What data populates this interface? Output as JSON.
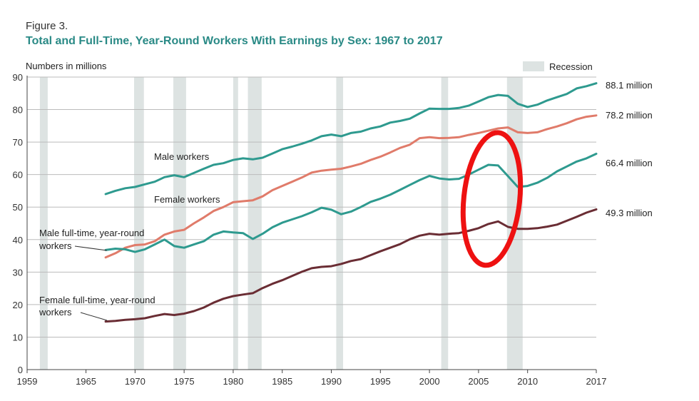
{
  "figure_label": "Figure 3.",
  "chart_data": {
    "type": "line",
    "title": "Total and Full-Time, Year-Round Workers With Earnings by Sex: 1967 to 2017",
    "ylabel": "Numbers in millions",
    "xlim": [
      1959,
      2017
    ],
    "ylim": [
      0,
      90
    ],
    "x_ticks": [
      "1959",
      "1965",
      "1970",
      "1975",
      "1980",
      "1985",
      "1990",
      "1995",
      "2000",
      "2005",
      "2010",
      "2017"
    ],
    "y_ticks": [
      "0",
      "10",
      "20",
      "30",
      "40",
      "50",
      "60",
      "70",
      "80",
      "90"
    ],
    "grid": "horizontal",
    "legend": {
      "label": "Recession",
      "position": "top-right",
      "color": "#dde3e2"
    },
    "recessions": [
      [
        1960.3,
        1961.1
      ],
      [
        1969.9,
        1970.9
      ],
      [
        1973.9,
        1975.2
      ],
      [
        1980.0,
        1980.5
      ],
      [
        1981.5,
        1982.9
      ],
      [
        1990.5,
        1991.2
      ],
      [
        2001.2,
        2001.9
      ],
      [
        2007.9,
        2009.5
      ]
    ],
    "series": [
      {
        "name": "Male workers",
        "color": "#2e9a8f",
        "label_value": "88.1 million",
        "x": [
          1967,
          1968,
          1969,
          1970,
          1971,
          1972,
          1973,
          1974,
          1975,
          1976,
          1977,
          1978,
          1979,
          1980,
          1981,
          1982,
          1983,
          1984,
          1985,
          1986,
          1987,
          1988,
          1989,
          1990,
          1991,
          1992,
          1993,
          1994,
          1995,
          1996,
          1997,
          1998,
          1999,
          2000,
          2001,
          2002,
          2003,
          2004,
          2005,
          2006,
          2007,
          2008,
          2009,
          2010,
          2011,
          2012,
          2013,
          2014,
          2015,
          2016,
          2017
        ],
        "y": [
          54,
          55,
          55.8,
          56.2,
          57,
          57.8,
          59.2,
          59.8,
          59.2,
          60.5,
          61.8,
          63,
          63.5,
          64.5,
          65,
          64.7,
          65.2,
          66.5,
          67.8,
          68.6,
          69.5,
          70.5,
          71.8,
          72.3,
          71.8,
          72.8,
          73.2,
          74.2,
          74.8,
          76,
          76.5,
          77.2,
          78.8,
          80.3,
          80.2,
          80.2,
          80.5,
          81.2,
          82.5,
          83.8,
          84.5,
          84.2,
          81.8,
          80.8,
          81.5,
          82.8,
          83.8,
          84.8,
          86.5,
          87.2,
          88.1
        ]
      },
      {
        "name": "Female workers",
        "color": "#e07b6a",
        "label_value": "78.2 million",
        "x": [
          1967,
          1968,
          1969,
          1970,
          1971,
          1972,
          1973,
          1974,
          1975,
          1976,
          1977,
          1978,
          1979,
          1980,
          1981,
          1982,
          1983,
          1984,
          1985,
          1986,
          1987,
          1988,
          1989,
          1990,
          1991,
          1992,
          1993,
          1994,
          1995,
          1996,
          1997,
          1998,
          1999,
          2000,
          2001,
          2002,
          2003,
          2004,
          2005,
          2006,
          2007,
          2008,
          2009,
          2010,
          2011,
          2012,
          2013,
          2014,
          2015,
          2016,
          2017
        ],
        "y": [
          34.5,
          35.8,
          37.5,
          38.3,
          38.5,
          39.5,
          41.5,
          42.5,
          43,
          45,
          46.8,
          48.8,
          50,
          51.5,
          51.8,
          52.1,
          53.3,
          55.2,
          56.5,
          57.8,
          59.1,
          60.6,
          61.2,
          61.5,
          61.8,
          62.5,
          63.3,
          64.5,
          65.5,
          66.8,
          68.2,
          69.2,
          71.2,
          71.5,
          71.2,
          71.3,
          71.5,
          72.2,
          72.8,
          73.5,
          74.2,
          74.5,
          73,
          72.8,
          73,
          74,
          74.8,
          75.8,
          77,
          77.8,
          78.2
        ]
      },
      {
        "name": "Male full-time, year-round workers",
        "color": "#2e9a8f",
        "label_value": "66.4 million",
        "x": [
          1967,
          1968,
          1969,
          1970,
          1971,
          1972,
          1973,
          1974,
          1975,
          1976,
          1977,
          1978,
          1979,
          1980,
          1981,
          1982,
          1983,
          1984,
          1985,
          1986,
          1987,
          1988,
          1989,
          1990,
          1991,
          1992,
          1993,
          1994,
          1995,
          1996,
          1997,
          1998,
          1999,
          2000,
          2001,
          2002,
          2003,
          2004,
          2005,
          2006,
          2007,
          2008,
          2009,
          2010,
          2011,
          2012,
          2013,
          2014,
          2015,
          2016,
          2017
        ],
        "y": [
          36.8,
          37.2,
          37,
          36.2,
          37,
          38.5,
          40,
          38,
          37.5,
          38.5,
          39.5,
          41.5,
          42.5,
          42.2,
          42,
          40.2,
          41.8,
          43.8,
          45.2,
          46.2,
          47.2,
          48.4,
          49.8,
          49.2,
          47.8,
          48.6,
          50,
          51.6,
          52.6,
          53.8,
          55.3,
          56.8,
          58.3,
          59.6,
          58.8,
          58.5,
          58.7,
          60,
          61.5,
          63,
          62.8,
          59.5,
          56.2,
          56.5,
          57.5,
          59,
          61,
          62.5,
          64,
          65,
          66.4
        ]
      },
      {
        "name": "Female full-time, year-round workers",
        "color": "#6a2d34",
        "label_value": "49.3 million",
        "x": [
          1967,
          1968,
          1969,
          1970,
          1971,
          1972,
          1973,
          1974,
          1975,
          1976,
          1977,
          1978,
          1979,
          1980,
          1981,
          1982,
          1983,
          1984,
          1985,
          1986,
          1987,
          1988,
          1989,
          1990,
          1991,
          1992,
          1993,
          1994,
          1995,
          1996,
          1997,
          1998,
          1999,
          2000,
          2001,
          2002,
          2003,
          2004,
          2005,
          2006,
          2007,
          2008,
          2009,
          2010,
          2011,
          2012,
          2013,
          2014,
          2015,
          2016,
          2017
        ],
        "y": [
          14.8,
          15,
          15.3,
          15.5,
          15.8,
          16.5,
          17.1,
          16.8,
          17.2,
          18,
          19.1,
          20.6,
          21.8,
          22.6,
          23.1,
          23.5,
          25.1,
          26.4,
          27.5,
          28.8,
          30.1,
          31.2,
          31.6,
          31.8,
          32.5,
          33.4,
          34,
          35.2,
          36.4,
          37.5,
          38.6,
          40.1,
          41.2,
          41.8,
          41.5,
          41.8,
          42,
          42.7,
          43.5,
          44.8,
          45.6,
          43.9,
          43.3,
          43.3,
          43.5,
          44,
          44.6,
          45.8,
          47,
          48.3,
          49.3
        ]
      }
    ],
    "annotation": {
      "type": "red-ellipse",
      "color": "#ee1111",
      "x_range": [
        2003.5,
        2009.2
      ],
      "y_range": [
        32,
        73
      ]
    }
  }
}
